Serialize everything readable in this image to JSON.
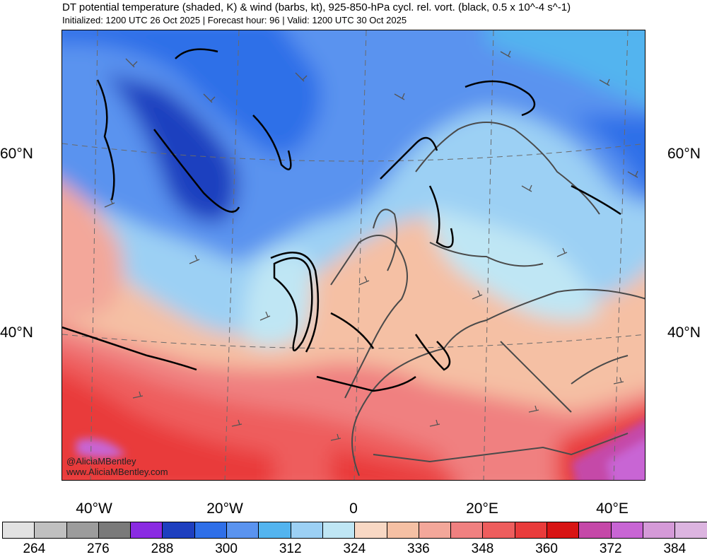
{
  "header": {
    "title": "DT potential temperature (shaded, K) & wind (barbs, kt), 925-850-hPa cycl. rel. vort. (black, 0.5 x 10^-4 s^-1)",
    "subtitle": "Initialized: 1200 UTC 26 Oct 2025 | Forecast hour: 96 | Valid: 1200 UTC 30 Oct 2025"
  },
  "map": {
    "lat_labels": [
      "60°N",
      "40°N"
    ],
    "lon_labels": [
      "40°W",
      "20°W",
      "0",
      "20°E",
      "40°E"
    ],
    "credits": [
      "@AliciaMBentley",
      "www.AliciaMBentley.com"
    ]
  },
  "colorbar": {
    "colors": [
      "#e2e2e2",
      "#c0c0c0",
      "#9c9c9c",
      "#7a7a7a",
      "#8a2be2",
      "#1e3fbf",
      "#2f6fe8",
      "#5a93ef",
      "#53b4ef",
      "#9cd0f4",
      "#bfe6f4",
      "#f8d8c4",
      "#f5c0a4",
      "#f3a79a",
      "#f08080",
      "#ee5d5d",
      "#e93b3b",
      "#d81414",
      "#c548a8",
      "#c865d4",
      "#d59ad8",
      "#dcb4e0"
    ],
    "labels": [
      "264",
      "276",
      "288",
      "300",
      "312",
      "324",
      "336",
      "348",
      "360",
      "372",
      "384"
    ]
  }
}
